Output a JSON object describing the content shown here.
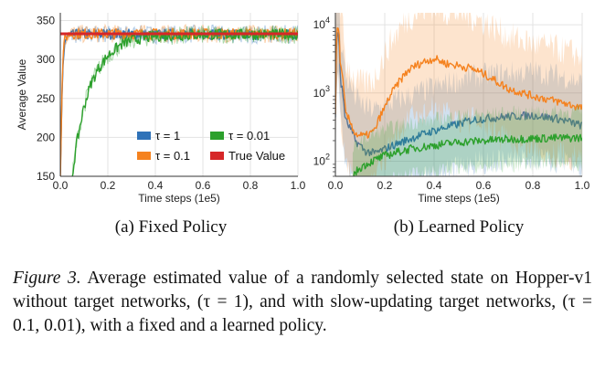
{
  "chart_data": [
    {
      "type": "line",
      "subcaption": "(a) Fixed Policy",
      "xlabel": "Time steps (1e5)",
      "ylabel": "Average Value",
      "xlim": [
        0.0,
        1.0
      ],
      "ylim": [
        150,
        360
      ],
      "x_ticks": [
        "0.0",
        "0.2",
        "0.4",
        "0.6",
        "0.8",
        "1.0"
      ],
      "y_ticks": [
        "150",
        "200",
        "250",
        "300",
        "350"
      ],
      "grid": true,
      "legend_position": "lower-right",
      "series": [
        {
          "name": "τ = 1",
          "color": "#2f72b8",
          "x": [
            0.0,
            0.01,
            0.02,
            0.04,
            0.06,
            0.1,
            0.2,
            0.4,
            0.6,
            0.8,
            1.0
          ],
          "y": [
            150,
            290,
            325,
            330,
            332,
            332,
            333,
            332,
            333,
            332,
            333
          ]
        },
        {
          "name": "τ = 0.1",
          "color": "#f5821f",
          "x": [
            0.0,
            0.01,
            0.02,
            0.04,
            0.06,
            0.1,
            0.2,
            0.4,
            0.6,
            0.8,
            1.0
          ],
          "y": [
            150,
            300,
            328,
            333,
            333,
            333,
            333,
            333,
            333,
            333,
            333
          ]
        },
        {
          "name": "τ = 0.01",
          "color": "#2ca02c",
          "x": [
            0.05,
            0.07,
            0.1,
            0.13,
            0.16,
            0.2,
            0.25,
            0.3,
            0.4,
            0.5,
            0.6,
            0.8,
            1.0
          ],
          "y": [
            150,
            195,
            240,
            270,
            288,
            305,
            318,
            325,
            330,
            331,
            332,
            332,
            332
          ]
        },
        {
          "name": "True Value",
          "color": "#d62728",
          "x": [
            0.0,
            1.0
          ],
          "y": [
            333,
            333
          ]
        }
      ]
    },
    {
      "type": "line",
      "subcaption": "(b) Learned Policy",
      "xlabel": "Time steps (1e5)",
      "ylabel": "",
      "xlim": [
        0.0,
        1.0
      ],
      "ylim": [
        60,
        15000
      ],
      "yscale": "log",
      "x_ticks": [
        "0.0",
        "0.2",
        "0.4",
        "0.6",
        "0.8",
        "1.0"
      ],
      "y_ticks": [
        "10^2",
        "10^3",
        "10^4"
      ],
      "grid": true,
      "series": [
        {
          "name": "τ = 1",
          "color": "#2f72b8",
          "x": [
            0.0,
            0.01,
            0.02,
            0.04,
            0.08,
            0.12,
            0.16,
            0.2,
            0.3,
            0.4,
            0.5,
            0.55,
            0.6,
            0.7,
            0.8,
            0.9,
            1.0
          ],
          "y": [
            500,
            9000,
            1500,
            400,
            200,
            140,
            130,
            150,
            210,
            280,
            350,
            400,
            420,
            450,
            470,
            420,
            330
          ]
        },
        {
          "name": "τ = 0.1",
          "color": "#f5821f",
          "x": [
            0.0,
            0.01,
            0.02,
            0.04,
            0.08,
            0.12,
            0.16,
            0.2,
            0.25,
            0.3,
            0.35,
            0.4,
            0.45,
            0.5,
            0.55,
            0.6,
            0.65,
            0.7,
            0.8,
            0.9,
            1.0
          ],
          "y": [
            500,
            11000,
            2500,
            500,
            250,
            230,
            280,
            600,
            1300,
            2200,
            2800,
            3200,
            2700,
            2500,
            2300,
            1900,
            1500,
            1150,
            900,
            750,
            600
          ]
        },
        {
          "name": "τ = 0.01",
          "color": "#2ca02c",
          "x": [
            0.07,
            0.1,
            0.15,
            0.2,
            0.3,
            0.4,
            0.5,
            0.6,
            0.7,
            0.8,
            0.9,
            1.0
          ],
          "y": [
            60,
            80,
            100,
            120,
            150,
            170,
            190,
            200,
            210,
            215,
            218,
            220
          ]
        }
      ]
    }
  ],
  "caption": {
    "lead": "Figure 3.",
    "text": " Average estimated value of a randomly selected state on Hopper-v1 without target networks, (τ = 1), and with slow-updating target networks, (τ = 0.1, 0.01), with a fixed and a learned policy."
  }
}
